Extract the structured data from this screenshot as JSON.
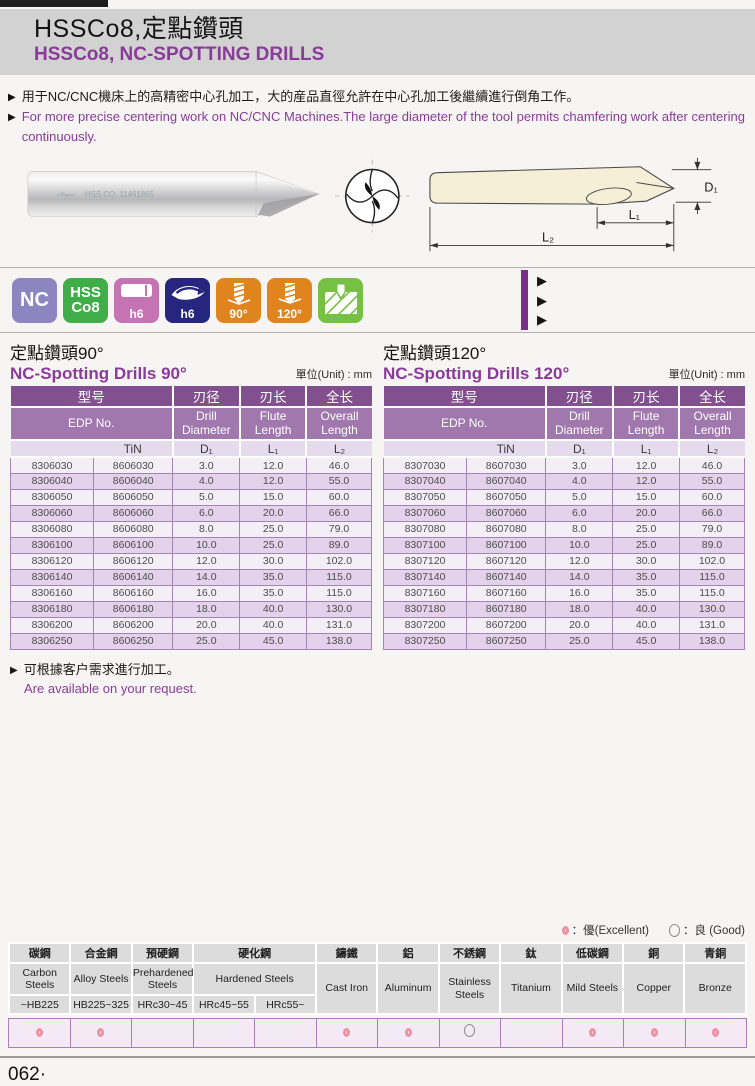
{
  "header": {
    "title_zh": "HSSCo8,定點鑽頭",
    "title_en": "HSSCo8, NC-SPOTTING DRILLS"
  },
  "intro": {
    "bullet_zh": "用于NC/CNC機床上的高精密中心孔加工，大的産品直徑允許在中心孔加工後繼續進行倒角工作。",
    "bullet_en": "For more precise centering work on NC/CNC Machines.The large diameter of the tool permits chamfering work after centering continuously."
  },
  "photo": {
    "etch_text": "HSS CO. 11461865"
  },
  "diagram": {
    "d1": "D₁",
    "l1": "L₁",
    "l2": "L₂"
  },
  "badges": {
    "nc": {
      "label": "NC",
      "color": "#8d85c0"
    },
    "hss": {
      "line1": "HSS",
      "line2": "Co8",
      "color": "#3fae49"
    },
    "h6_shank": {
      "label": "h6",
      "color": "#c673b3"
    },
    "h6_tip": {
      "label": "h6",
      "color": "#26267e"
    },
    "angle90": {
      "label": "90°",
      "color": "#e0851d"
    },
    "angle120": {
      "label": "120°",
      "color": "#e0851d"
    },
    "chamfer": {
      "color": "#76c043"
    }
  },
  "tables": [
    {
      "title_zh": "定點鑽頭90°",
      "title_en": "NC-Spotting Drills 90°",
      "unit": "單位(Unit) : mm",
      "header": {
        "model_zh": "型号",
        "model_en": "EDP No.",
        "model_sub": "TiN",
        "d_zh": "刃径",
        "d_en": "Drill Diameter",
        "d_sub": "D₁",
        "l_zh": "刃长",
        "l_en": "Flute Length",
        "l_sub": "L₁",
        "ol_zh": "全长",
        "ol_en": "Overall Length",
        "ol_sub": "L₂"
      },
      "rows": [
        [
          "8306030",
          "8606030",
          "3.0",
          "12.0",
          "46.0"
        ],
        [
          "8306040",
          "8606040",
          "4.0",
          "12.0",
          "55.0"
        ],
        [
          "8306050",
          "8606050",
          "5.0",
          "15.0",
          "60.0"
        ],
        [
          "8306060",
          "8606060",
          "6.0",
          "20.0",
          "66.0"
        ],
        [
          "8306080",
          "8606080",
          "8.0",
          "25.0",
          "79.0"
        ],
        [
          "8306100",
          "8606100",
          "10.0",
          "25.0",
          "89.0"
        ],
        [
          "8306120",
          "8606120",
          "12.0",
          "30.0",
          "102.0"
        ],
        [
          "8306140",
          "8606140",
          "14.0",
          "35.0",
          "115.0"
        ],
        [
          "8306160",
          "8606160",
          "16.0",
          "35.0",
          "115.0"
        ],
        [
          "8306180",
          "8606180",
          "18.0",
          "40.0",
          "130.0"
        ],
        [
          "8306200",
          "8606200",
          "20.0",
          "40.0",
          "131.0"
        ],
        [
          "8306250",
          "8606250",
          "25.0",
          "45.0",
          "138.0"
        ]
      ]
    },
    {
      "title_zh": "定點鑽頭120°",
      "title_en": "NC-Spotting Drills 120°",
      "unit": "單位(Unit) : mm",
      "header": {
        "model_zh": "型号",
        "model_en": "EDP No.",
        "model_sub": "TiN",
        "d_zh": "刃径",
        "d_en": "Drill Diameter",
        "d_sub": "D₁",
        "l_zh": "刃长",
        "l_en": "Flute Length",
        "l_sub": "L₁",
        "ol_zh": "全长",
        "ol_en": "Overall Length",
        "ol_sub": "L₂"
      },
      "rows": [
        [
          "8307030",
          "8607030",
          "3.0",
          "12.0",
          "46.0"
        ],
        [
          "8307040",
          "8607040",
          "4.0",
          "12.0",
          "55.0"
        ],
        [
          "8307050",
          "8607050",
          "5.0",
          "15.0",
          "60.0"
        ],
        [
          "8307060",
          "8607060",
          "6.0",
          "20.0",
          "66.0"
        ],
        [
          "8307080",
          "8607080",
          "8.0",
          "25.0",
          "79.0"
        ],
        [
          "8307100",
          "8607100",
          "10.0",
          "25.0",
          "89.0"
        ],
        [
          "8307120",
          "8607120",
          "12.0",
          "30.0",
          "102.0"
        ],
        [
          "8307140",
          "8607140",
          "14.0",
          "35.0",
          "115.0"
        ],
        [
          "8307160",
          "8607160",
          "16.0",
          "35.0",
          "115.0"
        ],
        [
          "8307180",
          "8607180",
          "18.0",
          "40.0",
          "130.0"
        ],
        [
          "8307200",
          "8607200",
          "20.0",
          "40.0",
          "131.0"
        ],
        [
          "8307250",
          "8607250",
          "25.0",
          "45.0",
          "138.0"
        ]
      ]
    }
  ],
  "note": {
    "zh": "可根據客户需求進行加工。",
    "en": "Are available on your request."
  },
  "legend": {
    "excellent_label": "：優(Excellent)",
    "good_label": "：良 (Good)"
  },
  "materials": {
    "groups": [
      {
        "zh": "碳鋼",
        "en": "Carbon Steels",
        "subs": [
          "~HB225"
        ],
        "ratings": [
          "excellent"
        ]
      },
      {
        "zh": "合金鋼",
        "en": "Alloy Steels",
        "subs": [
          "HB225~325"
        ],
        "ratings": [
          "excellent"
        ]
      },
      {
        "zh": "預硬鋼",
        "en": "Prehardened Steels",
        "subs": [
          "HRc30~45"
        ],
        "ratings": [
          ""
        ]
      },
      {
        "zh": "硬化鋼",
        "en": "Hardened Steels",
        "subs": [
          "HRc45~55",
          "HRc55~"
        ],
        "ratings": [
          "",
          ""
        ]
      },
      {
        "zh": "鑄鐵",
        "en": "Cast Iron",
        "subs": [],
        "ratings": [
          "excellent"
        ]
      },
      {
        "zh": "鋁",
        "en": "Aluminum",
        "subs": [],
        "ratings": [
          "excellent"
        ]
      },
      {
        "zh": "不銹鋼",
        "en": "Stainless Steels",
        "subs": [],
        "ratings": [
          "good"
        ]
      },
      {
        "zh": "鈦",
        "en": "Titanium",
        "subs": [],
        "ratings": [
          ""
        ]
      },
      {
        "zh": "低碳鋼",
        "en": "Mild Steels",
        "subs": [],
        "ratings": [
          "excellent"
        ]
      },
      {
        "zh": "銅",
        "en": "Copper",
        "subs": [],
        "ratings": [
          "excellent"
        ]
      },
      {
        "zh": "青銅",
        "en": "Bronze",
        "subs": [],
        "ratings": [
          "excellent"
        ]
      }
    ]
  },
  "footer": {
    "page_number": "062·"
  }
}
